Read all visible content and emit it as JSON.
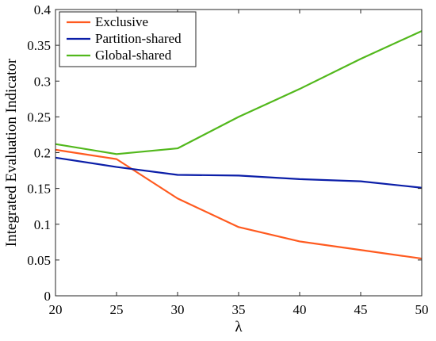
{
  "chart_data": {
    "type": "line",
    "title": "",
    "xlabel": "λ",
    "ylabel": "Integrated Evaluation Indicator",
    "x": [
      20,
      25,
      30,
      35,
      40,
      45,
      50
    ],
    "xlim": [
      20,
      50
    ],
    "ylim": [
      0,
      0.4
    ],
    "xticks": [
      "20",
      "25",
      "30",
      "35",
      "40",
      "45",
      "50"
    ],
    "yticks": [
      "0",
      "0.05",
      "0.1",
      "0.15",
      "0.2",
      "0.25",
      "0.3",
      "0.35",
      "0.4"
    ],
    "grid": false,
    "legend_position": "top-left",
    "series": [
      {
        "name": "Exclusive",
        "color": "#ff5a1f",
        "values": [
          0.204,
          0.191,
          0.136,
          0.096,
          0.076,
          0.064,
          0.052
        ]
      },
      {
        "name": "Partition-shared",
        "color": "#0b1ea8",
        "values": [
          0.193,
          0.18,
          0.169,
          0.168,
          0.163,
          0.16,
          0.151
        ]
      },
      {
        "name": "Global-shared",
        "color": "#52b81c",
        "values": [
          0.212,
          0.198,
          0.206,
          0.25,
          0.289,
          0.331,
          0.37
        ]
      }
    ]
  }
}
